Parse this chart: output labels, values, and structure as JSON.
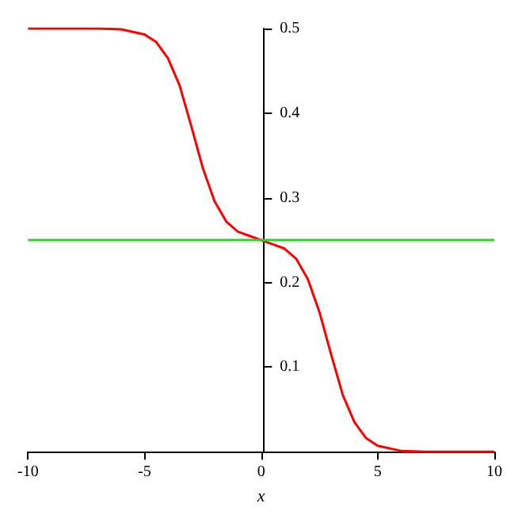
{
  "chart_data": {
    "type": "line",
    "xlabel": "x",
    "xlim": [
      -10,
      10
    ],
    "xticks": [
      -10,
      -5,
      0,
      5,
      10
    ],
    "ylim": [
      0,
      0.5
    ],
    "yticks": [
      0.1,
      0.2,
      0.3,
      0.4,
      0.5
    ],
    "grid": false,
    "marker": "none",
    "line_style": "solid",
    "series": [
      {
        "color": "#ff0000",
        "x": [
          -10,
          -8,
          -7,
          -6,
          -5,
          -4.5,
          -4,
          -3.5,
          -3,
          -2.5,
          -2,
          -1.5,
          -1,
          -0.5,
          0,
          0.5,
          1,
          1.5,
          2,
          2.5,
          3,
          3.5,
          4,
          4.5,
          5,
          6,
          7,
          8,
          10
        ],
        "values": [
          0.5,
          0.5,
          0.5,
          0.499,
          0.493,
          0.484,
          0.465,
          0.433,
          0.385,
          0.335,
          0.296,
          0.272,
          0.26,
          0.255,
          0.25,
          0.245,
          0.24,
          0.228,
          0.204,
          0.165,
          0.115,
          0.067,
          0.035,
          0.016,
          0.007,
          0.001,
          0,
          0,
          0
        ]
      },
      {
        "color": "#33cc33",
        "x": [
          -10,
          10
        ],
        "values": [
          0.25,
          0.25
        ]
      }
    ]
  }
}
